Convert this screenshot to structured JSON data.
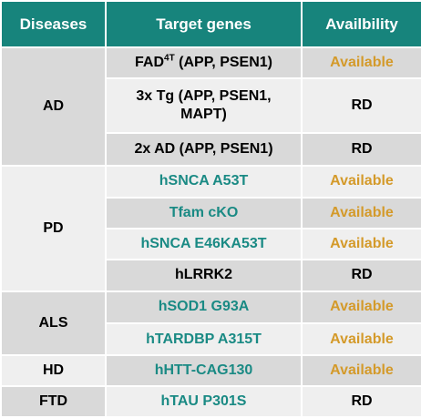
{
  "colors": {
    "header_bg": "#17847c",
    "header_text": "#ffffff",
    "row_dark": "#d9d9d9",
    "row_light": "#efefef",
    "teal_text": "#1a8a84",
    "available_text": "#d49a2a"
  },
  "header": {
    "diseases": "Diseases",
    "target_genes": "Target genes",
    "availability": "Availbility"
  },
  "rows": [
    {
      "disease": "AD",
      "gene_main": "FAD",
      "gene_sup": "4T",
      "gene_rest": " (APP, PSEN1)",
      "status": "Available"
    },
    {
      "gene": "3x Tg  (APP, PSEN1, MAPT)",
      "status": "RD"
    },
    {
      "gene": "2x AD (APP, PSEN1)",
      "status": "RD"
    },
    {
      "disease": "PD",
      "gene": "hSNCA A53T",
      "status": "Available"
    },
    {
      "gene": "Tfam cKO",
      "status": "Available"
    },
    {
      "gene": "hSNCA E46KA53T",
      "status": "Available"
    },
    {
      "gene": "hLRRK2",
      "status": "RD"
    },
    {
      "disease": "ALS",
      "gene": "hSOD1 G93A",
      "status": "Available"
    },
    {
      "gene": "hTARDBP A315T",
      "status": "Available"
    },
    {
      "disease": "HD",
      "gene": "hHTT-CAG130",
      "status": "Available"
    },
    {
      "disease": "FTD",
      "gene": "hTAU P301S",
      "status": "RD"
    }
  ]
}
